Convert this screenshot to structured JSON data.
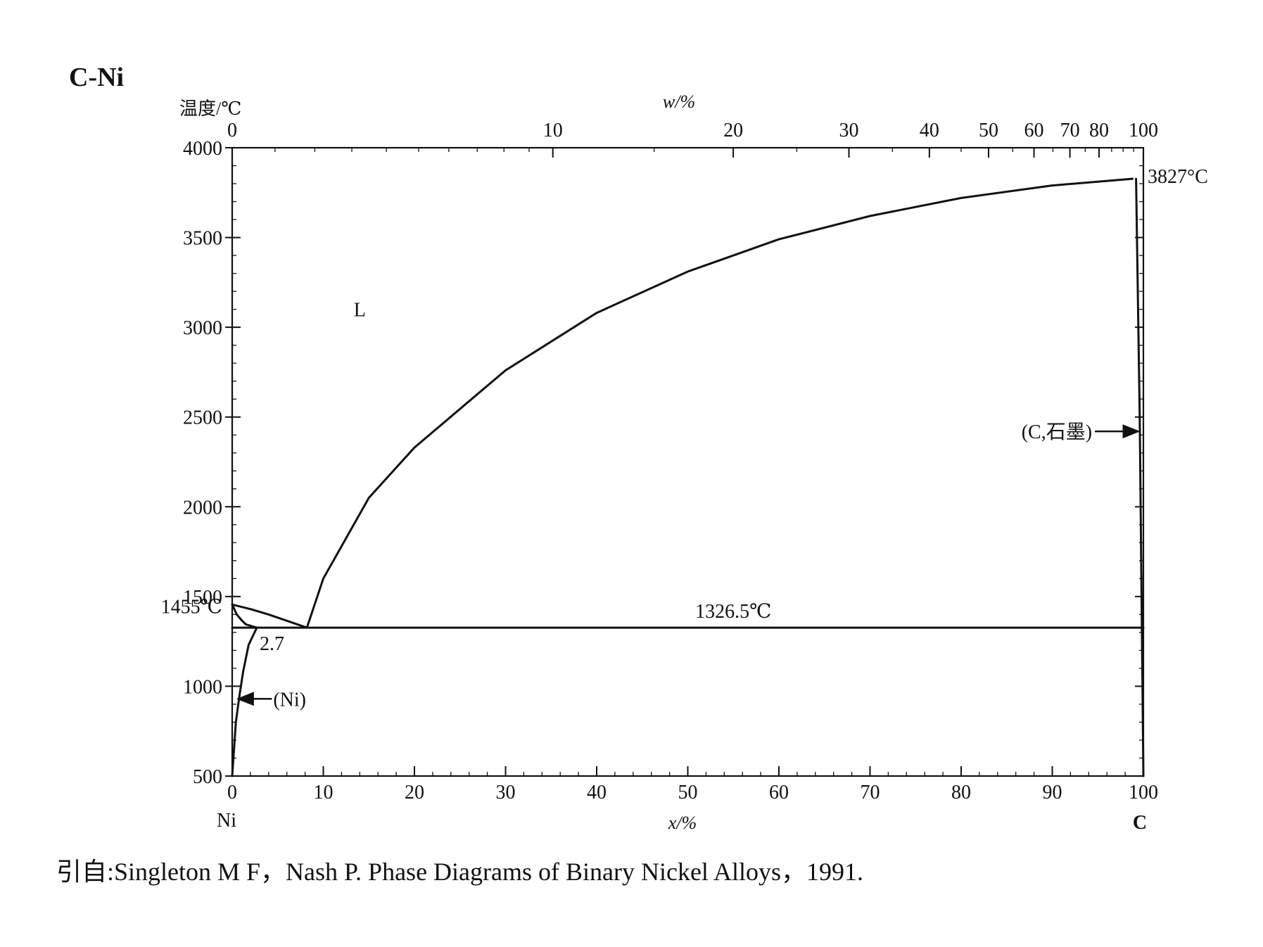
{
  "chart_data": {
    "type": "line",
    "title": "C-Ni",
    "ylabel": "温度/℃",
    "xlabel": "x/%",
    "x2label": "w/%",
    "xlim": [
      0,
      100
    ],
    "ylim": [
      500,
      4000
    ],
    "x_ticks": [
      0,
      10,
      20,
      30,
      40,
      50,
      60,
      70,
      80,
      90,
      100
    ],
    "y_ticks": [
      500,
      1000,
      1500,
      2000,
      2500,
      3000,
      3500,
      4000
    ],
    "x2_ticks": [
      0,
      10,
      20,
      30,
      40,
      50,
      60,
      70,
      80,
      100
    ],
    "x_end_labels": {
      "left": "Ni",
      "right": "C"
    },
    "series": [
      {
        "x": [
          8.2,
          10,
          15,
          20,
          30,
          40,
          50,
          60,
          70,
          80,
          90,
          98.8
        ],
        "y": [
          1326.5,
          1600,
          2050,
          2330,
          2760,
          3080,
          3310,
          3490,
          3620,
          3720,
          3790,
          3827
        ]
      },
      {
        "x": [
          0,
          2,
          4,
          6,
          8.2
        ],
        "y": [
          1455,
          1430,
          1400,
          1365,
          1326.5
        ]
      },
      {
        "x": [
          0,
          0.5,
          1,
          1.5,
          2.7
        ],
        "y": [
          1455,
          1400,
          1370,
          1345,
          1326.5
        ]
      },
      {
        "x": [
          0,
          0.4,
          0.8,
          1.2,
          1.8,
          2.7
        ],
        "y": [
          500,
          800,
          950,
          1080,
          1230,
          1326.5
        ]
      },
      {
        "x": [
          0,
          100
        ],
        "y": [
          1326.5,
          1326.5
        ]
      },
      {
        "x": [
          99.2,
          99.6,
          100
        ],
        "y": [
          3827,
          2500,
          500
        ]
      }
    ],
    "annotations": [
      {
        "text": "L",
        "x": 14,
        "y": 3100
      },
      {
        "text": "3827°C",
        "x": 100,
        "y": 3827
      },
      {
        "text": "(C,石墨)",
        "x": 99,
        "y": 2420
      },
      {
        "text": "1326.5℃",
        "x": 55,
        "y": 1326.5
      },
      {
        "text": "1455℃",
        "x": 0,
        "y": 1455
      },
      {
        "text": "2.7",
        "x": 2.7,
        "y": 1326.5
      },
      {
        "text": "(Ni)",
        "x": 0.8,
        "y": 930
      }
    ]
  },
  "citation": "引自:Singleton M F，Nash P. Phase Diagrams of Binary Nickel Alloys，1991."
}
